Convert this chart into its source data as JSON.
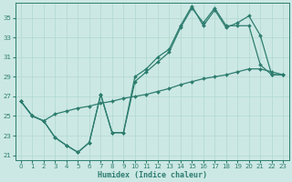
{
  "title": "",
  "xlabel": "Humidex (Indice chaleur)",
  "bg_color": "#cce8e4",
  "grid_color": "#b0d8d0",
  "line_color": "#2d7d6f",
  "xlim": [
    -0.5,
    23.5
  ],
  "ylim": [
    20.5,
    36.5
  ],
  "xticks": [
    0,
    1,
    2,
    3,
    4,
    5,
    6,
    7,
    8,
    9,
    10,
    11,
    12,
    13,
    14,
    15,
    16,
    17,
    18,
    19,
    20,
    21,
    22,
    23
  ],
  "yticks": [
    21,
    23,
    25,
    27,
    29,
    31,
    33,
    35
  ],
  "line1_x": [
    0,
    1,
    2,
    3,
    4,
    5,
    6,
    7,
    8,
    9,
    10,
    11,
    12,
    13,
    14,
    15,
    16,
    17,
    18,
    19,
    20,
    21,
    22,
    23
  ],
  "line1_y": [
    26.5,
    25.0,
    24.5,
    22.8,
    22.0,
    21.3,
    22.3,
    27.2,
    23.3,
    23.3,
    29.0,
    29.8,
    31.0,
    31.8,
    34.2,
    36.2,
    34.2,
    35.8,
    34.0,
    34.5,
    35.2,
    33.2,
    29.2,
    29.2
  ],
  "line2_x": [
    0,
    1,
    2,
    3,
    4,
    5,
    6,
    7,
    8,
    9,
    10,
    11,
    12,
    13,
    14,
    15,
    16,
    17,
    18,
    19,
    20,
    21,
    22,
    23
  ],
  "line2_y": [
    26.5,
    25.0,
    24.5,
    22.8,
    22.0,
    21.3,
    22.3,
    27.2,
    23.3,
    23.3,
    28.5,
    29.5,
    30.5,
    31.5,
    34.0,
    36.0,
    34.5,
    36.0,
    34.2,
    34.2,
    34.2,
    30.2,
    29.2,
    29.2
  ],
  "line3_x": [
    0,
    1,
    2,
    3,
    4,
    5,
    6,
    7,
    8,
    9,
    10,
    11,
    12,
    13,
    14,
    15,
    16,
    17,
    18,
    19,
    20,
    21,
    22,
    23
  ],
  "line3_y": [
    26.5,
    25.0,
    24.5,
    25.2,
    25.5,
    25.8,
    26.0,
    26.3,
    26.5,
    26.8,
    27.0,
    27.2,
    27.5,
    27.8,
    28.2,
    28.5,
    28.8,
    29.0,
    29.2,
    29.5,
    29.8,
    29.8,
    29.5,
    29.2
  ]
}
